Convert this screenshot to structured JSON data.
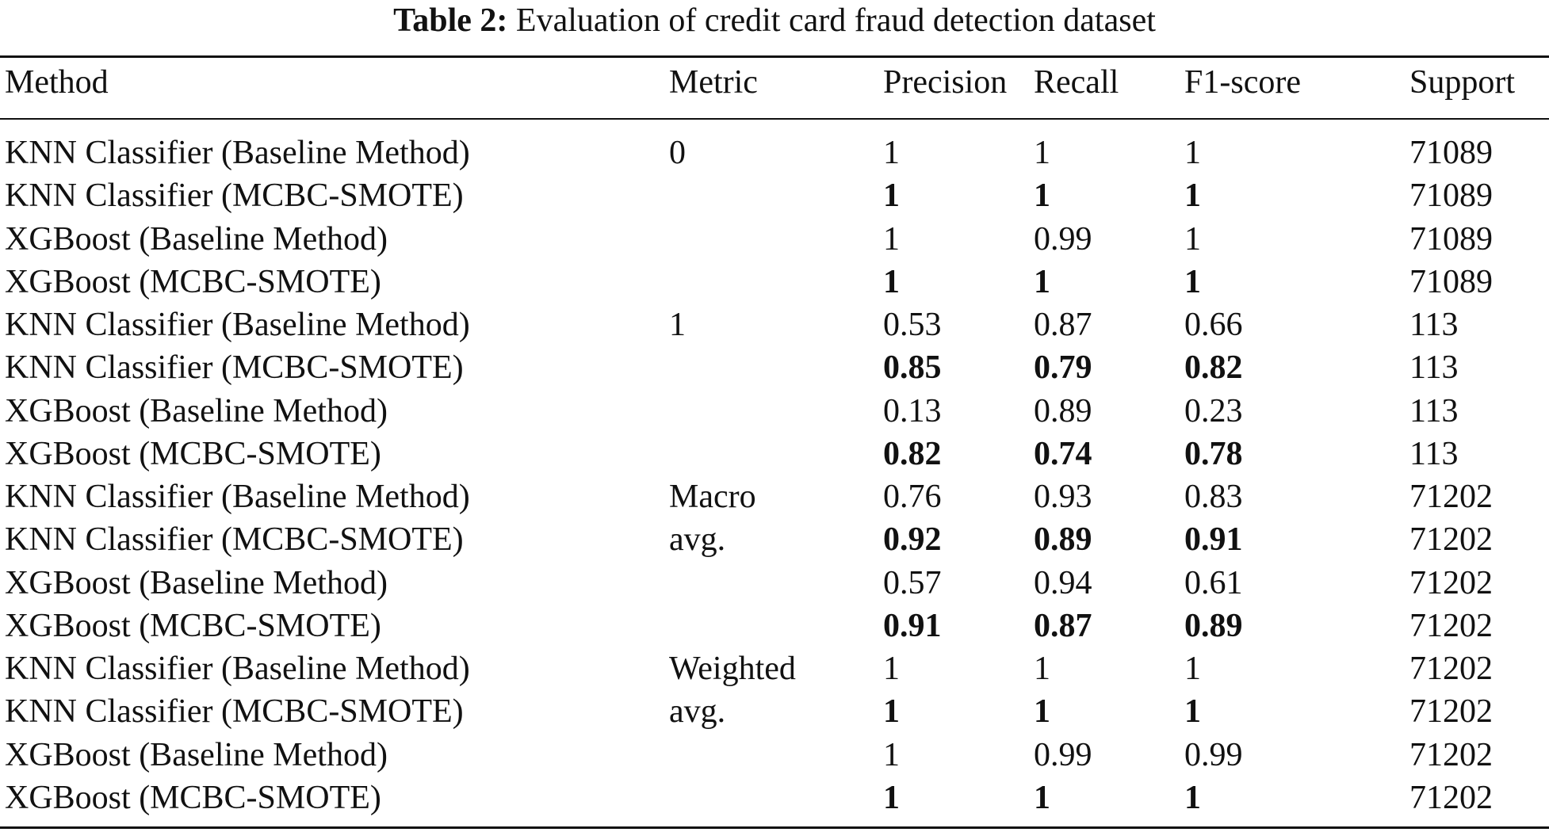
{
  "caption": {
    "label": "Table 2:",
    "text": "Evaluation of credit card fraud detection dataset"
  },
  "header": {
    "method": "Method",
    "metric": "Metric",
    "precision": "Precision",
    "recall": "Recall",
    "f1": "F1-score",
    "support": "Support"
  },
  "rows": [
    {
      "method": "KNN Classifier (Baseline Method)",
      "metric": "0",
      "precision": "1",
      "recall": "1",
      "f1": "1",
      "support": "71089",
      "bold": false
    },
    {
      "method": "KNN Classifier (MCBC-SMOTE)",
      "metric": "",
      "precision": "1",
      "recall": "1",
      "f1": "1",
      "support": "71089",
      "bold": true
    },
    {
      "method": "XGBoost (Baseline Method)",
      "metric": "",
      "precision": "1",
      "recall": "0.99",
      "f1": "1",
      "support": "71089",
      "bold": false
    },
    {
      "method": "XGBoost (MCBC-SMOTE)",
      "metric": "",
      "precision": "1",
      "recall": "1",
      "f1": "1",
      "support": "71089",
      "bold": true
    },
    {
      "method": "KNN Classifier (Baseline Method)",
      "metric": "1",
      "precision": "0.53",
      "recall": "0.87",
      "f1": "0.66",
      "support": "113",
      "bold": false
    },
    {
      "method": "KNN Classifier (MCBC-SMOTE)",
      "metric": "",
      "precision": "0.85",
      "recall": "0.79",
      "f1": "0.82",
      "support": "113",
      "bold": true
    },
    {
      "method": "XGBoost (Baseline Method)",
      "metric": "",
      "precision": "0.13",
      "recall": "0.89",
      "f1": "0.23",
      "support": "113",
      "bold": false
    },
    {
      "method": "XGBoost (MCBC-SMOTE)",
      "metric": "",
      "precision": "0.82",
      "recall": "0.74",
      "f1": "0.78",
      "support": "113",
      "bold": true
    },
    {
      "method": "KNN Classifier (Baseline Method)",
      "metric": "Macro",
      "precision": "0.76",
      "recall": "0.93",
      "f1": "0.83",
      "support": "71202",
      "bold": false
    },
    {
      "method": "KNN Classifier (MCBC-SMOTE)",
      "metric": "avg.",
      "precision": "0.92",
      "recall": "0.89",
      "f1": "0.91",
      "support": "71202",
      "bold": true
    },
    {
      "method": "XGBoost (Baseline Method)",
      "metric": "",
      "precision": "0.57",
      "recall": "0.94",
      "f1": "0.61",
      "support": "71202",
      "bold": false
    },
    {
      "method": "XGBoost (MCBC-SMOTE)",
      "metric": "",
      "precision": "0.91",
      "recall": "0.87",
      "f1": "0.89",
      "support": "71202",
      "bold": true
    },
    {
      "method": "KNN Classifier (Baseline Method)",
      "metric": "Weighted",
      "precision": "1",
      "recall": "1",
      "f1": "1",
      "support": "71202",
      "bold": false
    },
    {
      "method": "KNN Classifier (MCBC-SMOTE)",
      "metric": "avg.",
      "precision": "1",
      "recall": "1",
      "f1": "1",
      "support": "71202",
      "bold": true
    },
    {
      "method": "XGBoost (Baseline Method)",
      "metric": "",
      "precision": "1",
      "recall": "0.99",
      "f1": "0.99",
      "support": "71202",
      "bold": false
    },
    {
      "method": "XGBoost (MCBC-SMOTE)",
      "metric": "",
      "precision": "1",
      "recall": "1",
      "f1": "1",
      "support": "71202",
      "bold": true
    }
  ]
}
